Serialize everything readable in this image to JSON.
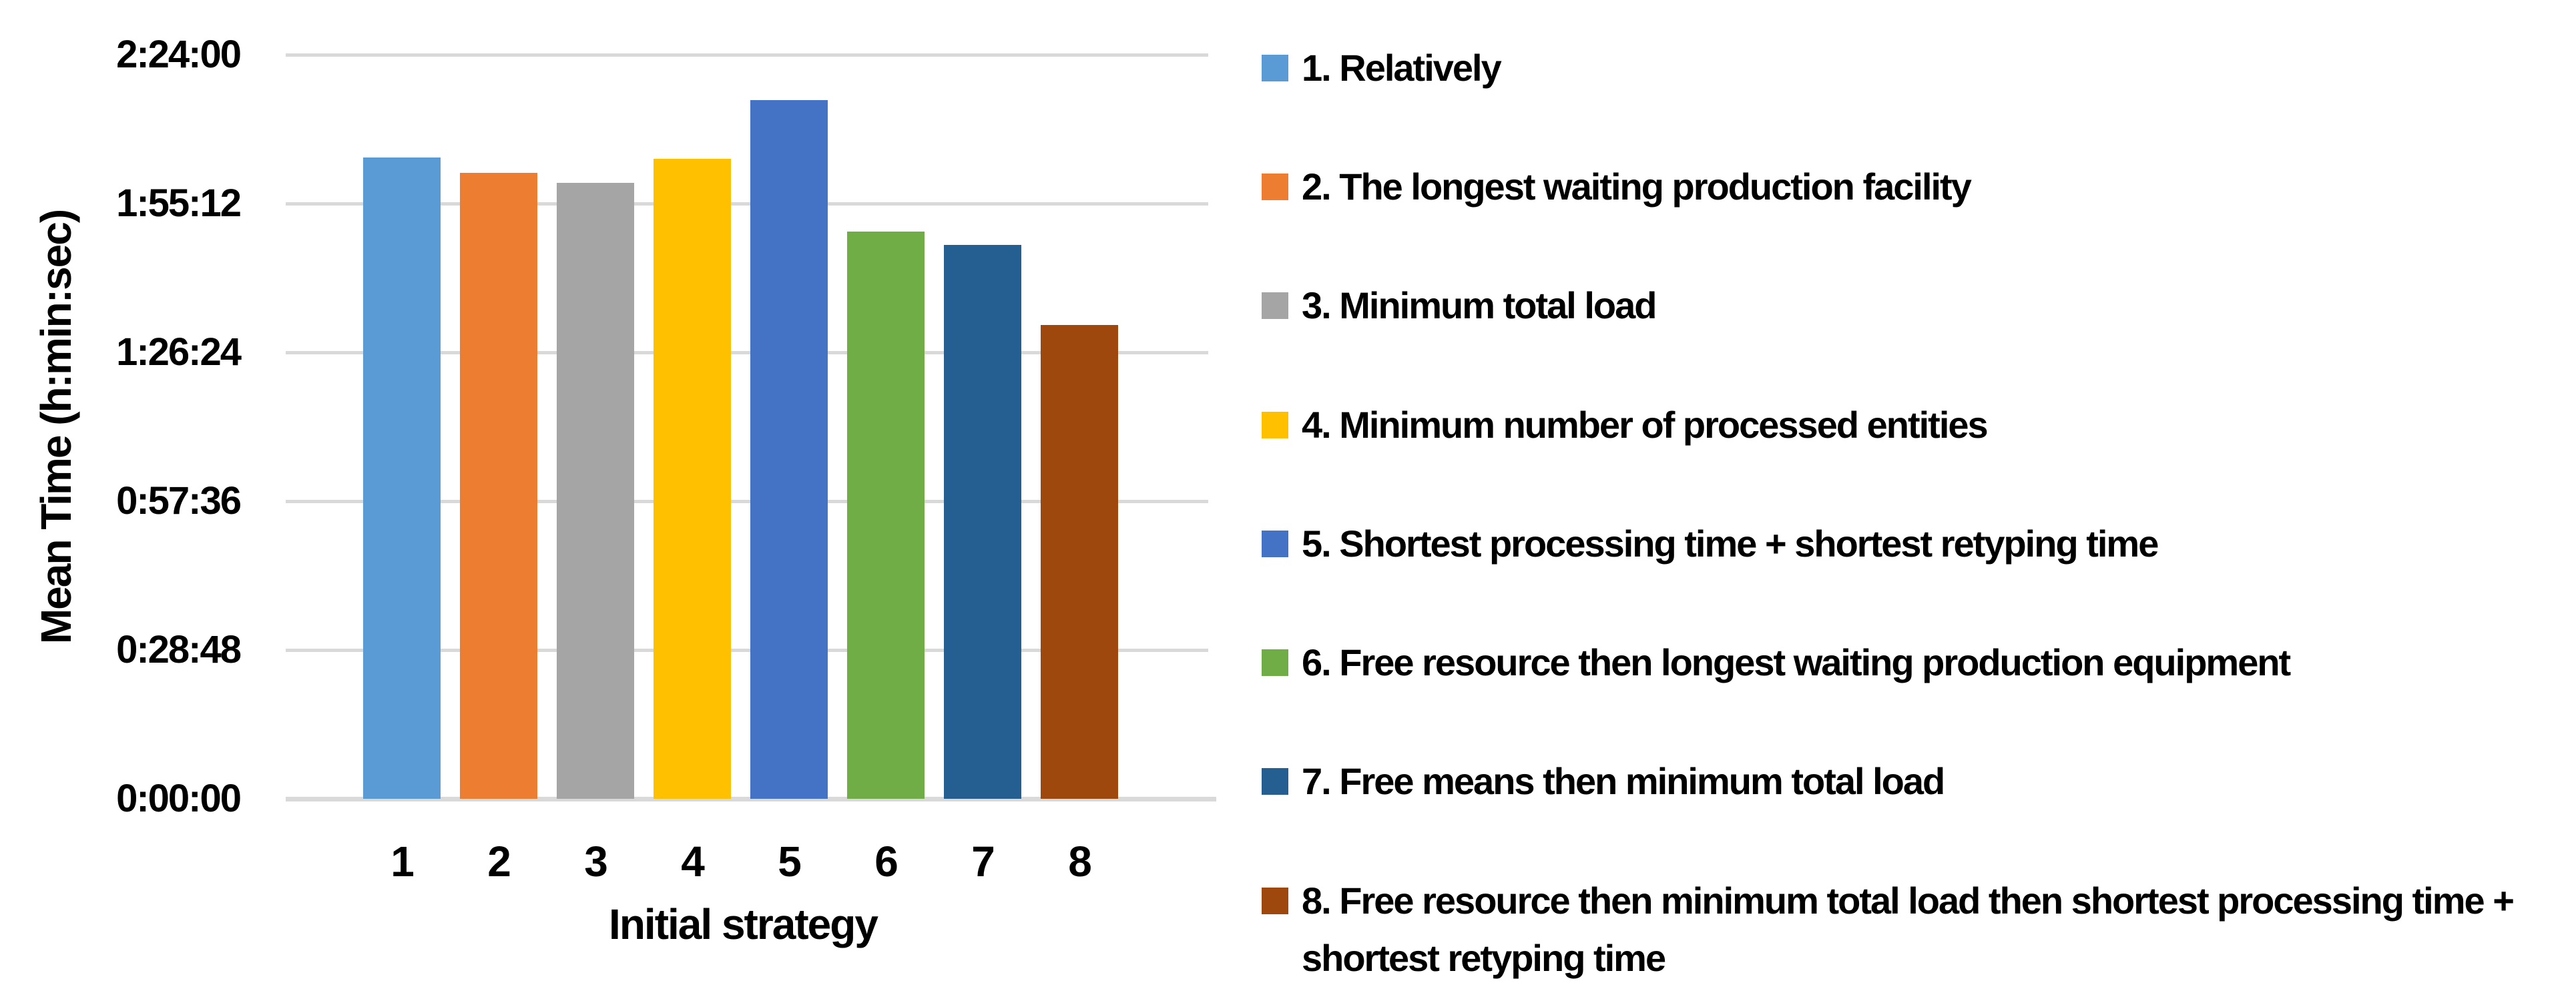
{
  "chart_data": {
    "type": "bar",
    "title": "",
    "xlabel": "Initial strategy",
    "ylabel": "Mean Time (h:min:sec)",
    "categories": [
      "1",
      "2",
      "3",
      "4",
      "5",
      "6",
      "7",
      "8"
    ],
    "values_hms": [
      "2:04:07",
      "2:01:09",
      "1:59:12",
      "2:03:51",
      "2:15:13",
      "1:49:47",
      "1:47:12",
      "1:31:42"
    ],
    "values_seconds": [
      7447,
      7269,
      7152,
      7431,
      8113,
      6587,
      6432,
      5502
    ],
    "bar_colors": [
      "#5B9BD5",
      "#ED7D31",
      "#A5A5A5",
      "#FFC000",
      "#4472C4",
      "#70AD47",
      "#255E91",
      "#9E480E"
    ],
    "ylim": [
      0,
      8640
    ],
    "y_ticks": [
      {
        "label": "2:24:00",
        "seconds": 8640
      },
      {
        "label": "1:55:12",
        "seconds": 6912
      },
      {
        "label": "1:26:24",
        "seconds": 5184
      },
      {
        "label": "0:57:36",
        "seconds": 3456
      },
      {
        "label": "0:28:48",
        "seconds": 1728
      },
      {
        "label": "0:00:00",
        "seconds": 0
      }
    ],
    "grid": true,
    "gridline_color": "#D9D9D9",
    "legend_position": "right",
    "legend": [
      {
        "label": "1. Relatively",
        "color": "#5B9BD5"
      },
      {
        "label": "2. The longest waiting production facility",
        "color": "#ED7D31"
      },
      {
        "label": "3. Minimum total load",
        "color": "#A5A5A5"
      },
      {
        "label": "4. Minimum number of processed entities",
        "color": "#FFC000"
      },
      {
        "label": "5. Shortest processing time + shortest retyping time",
        "color": "#4472C4"
      },
      {
        "label": "6. Free resource then longest waiting production equipment",
        "color": "#70AD47"
      },
      {
        "label": "7. Free means then minimum total load",
        "color": "#255E91"
      },
      {
        "label": "8. Free resource then minimum total load then shortest processing time + shortest retyping time",
        "color": "#9E480E"
      }
    ]
  }
}
